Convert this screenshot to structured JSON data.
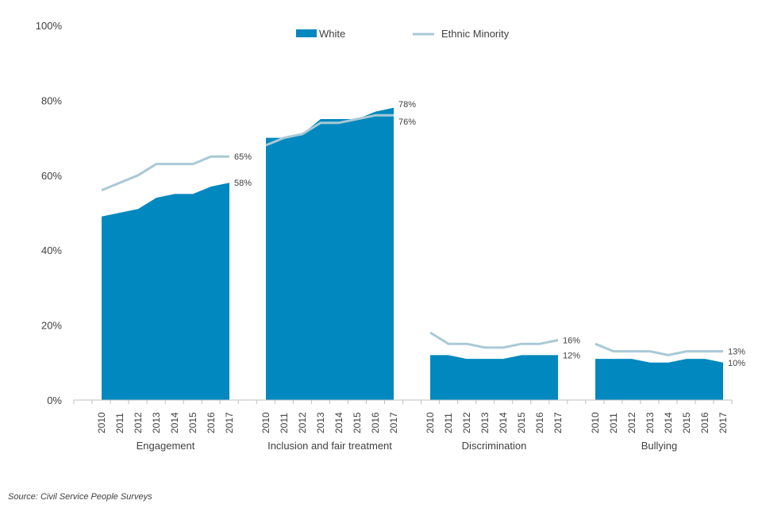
{
  "chart_data": {
    "type": "area",
    "title": "",
    "y_axis": {
      "min": 0,
      "max": 100,
      "ticks": [
        0,
        20,
        40,
        60,
        80,
        100
      ],
      "tick_labels": [
        "0%",
        "20%",
        "40%",
        "60%",
        "80%",
        "100%"
      ]
    },
    "years": [
      "2010",
      "2011",
      "2012",
      "2013",
      "2014",
      "2015",
      "2016",
      "2017"
    ],
    "legend": {
      "white": "White",
      "ethnic_minority": "Ethnic Minority"
    },
    "colors": {
      "white": "#0088bf",
      "ethnic_minority": "#a9c9d6",
      "axis": "#bfbfbf",
      "text": "#404040"
    },
    "groups": [
      {
        "name": "Engagement",
        "white": [
          49,
          50,
          51,
          54,
          55,
          55,
          57,
          58
        ],
        "ethnic_minority": [
          56,
          58,
          60,
          63,
          63,
          63,
          65,
          65
        ],
        "labels": {
          "white": "58%",
          "ethnic_minority": "65%"
        }
      },
      {
        "name": "Inclusion and fair treatment",
        "white": [
          70,
          70,
          71,
          75,
          75,
          75,
          77,
          78
        ],
        "ethnic_minority": [
          68,
          70,
          71,
          74,
          74,
          75,
          76,
          76
        ],
        "labels": {
          "white": "78%",
          "ethnic_minority": "76%"
        }
      },
      {
        "name": "Discrimination",
        "white": [
          12,
          12,
          11,
          11,
          11,
          12,
          12,
          12
        ],
        "ethnic_minority": [
          18,
          15,
          15,
          14,
          14,
          15,
          15,
          16
        ],
        "labels": {
          "white": "12%",
          "ethnic_minority": "16%"
        }
      },
      {
        "name": "Bullying",
        "white": [
          11,
          11,
          11,
          10,
          10,
          11,
          11,
          10
        ],
        "ethnic_minority": [
          15,
          13,
          13,
          13,
          12,
          13,
          13,
          13
        ],
        "labels": {
          "white": "10%",
          "ethnic_minority": "13%"
        }
      }
    ]
  },
  "source_note": "Source:  Civil Service  People Surveys"
}
